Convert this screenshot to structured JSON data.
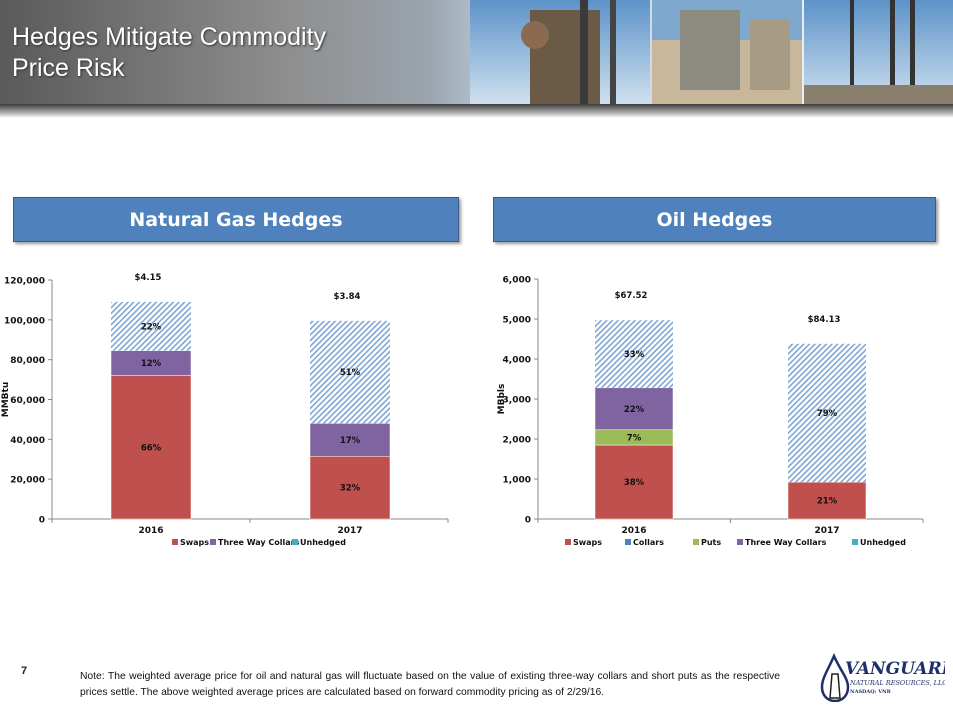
{
  "header": {
    "title_line1": "Hedges Mitigate Commodity",
    "title_line2": "Price Risk"
  },
  "page_number": "7",
  "note": "Note: The weighted average price for oil and natural gas will fluctuate based on the value of existing three-way collars and short puts as the respective prices settle. The above weighted average prices are calculated based on forward commodity pricing as of 2/29/16.",
  "logo": {
    "name": "VANGUARD",
    "sub": "NATURAL RESOURCES, LLC",
    "ticker": "NASDAQ: VNR"
  },
  "colors": {
    "Swaps": "#c0504d",
    "Collars": "#4f81bd",
    "Puts": "#9bbb59",
    "Three Way Collars": "#8064a2",
    "Unhedged": "#4bacc6",
    "banner": "#4f81bd",
    "hatch": "#7fa5d2"
  },
  "chart_data": [
    {
      "type": "bar",
      "stacked": true,
      "title": "Natural Gas Hedges",
      "ylabel": "MMBtu",
      "ylim": [
        0,
        120000
      ],
      "yticks": [
        0,
        20000,
        40000,
        60000,
        80000,
        100000,
        120000
      ],
      "ytick_labels": [
        "0",
        "20,000",
        "40,000",
        "60,000",
        "80,000",
        "100,000",
        "120,000"
      ],
      "categories": [
        "2016",
        "2017"
      ],
      "price_labels": [
        "$4.15",
        "$3.84"
      ],
      "legend": [
        "Swaps",
        "Three Way Collars",
        "Unhedged"
      ],
      "legend_position": "bottom",
      "series": [
        {
          "name": "Swaps",
          "values": [
            72000,
            31500
          ],
          "labels": [
            "66%",
            "32%"
          ]
        },
        {
          "name": "Three Way Collars",
          "values": [
            12500,
            16500
          ],
          "labels": [
            "12%",
            "17%"
          ]
        },
        {
          "name": "Unhedged",
          "values": [
            24500,
            51500
          ],
          "labels": [
            "22%",
            "51%"
          ],
          "hatched": true
        }
      ]
    },
    {
      "type": "bar",
      "stacked": true,
      "title": "Oil Hedges",
      "ylabel": "MBbls",
      "ylim": [
        0,
        6000
      ],
      "yticks": [
        0,
        1000,
        2000,
        3000,
        4000,
        5000,
        6000
      ],
      "ytick_labels": [
        "0",
        "1,000",
        "2,000",
        "3,000",
        "4,000",
        "5,000",
        "6,000"
      ],
      "categories": [
        "2016",
        "2017"
      ],
      "price_labels": [
        "$67.52",
        "$84.13"
      ],
      "legend": [
        "Swaps",
        "Collars",
        "Puts",
        "Three Way Collars",
        "Unhedged"
      ],
      "legend_position": "bottom",
      "series": [
        {
          "name": "Swaps",
          "values": [
            1850,
            920
          ],
          "labels": [
            "38%",
            "21%"
          ]
        },
        {
          "name": "Puts",
          "values": [
            380,
            0
          ],
          "labels": [
            "7%",
            ""
          ]
        },
        {
          "name": "Three Way Collars",
          "values": [
            1050,
            0
          ],
          "labels": [
            "22%",
            ""
          ]
        },
        {
          "name": "Unhedged",
          "values": [
            1690,
            3460
          ],
          "labels": [
            "33%",
            "79%"
          ],
          "hatched": true
        }
      ]
    }
  ]
}
